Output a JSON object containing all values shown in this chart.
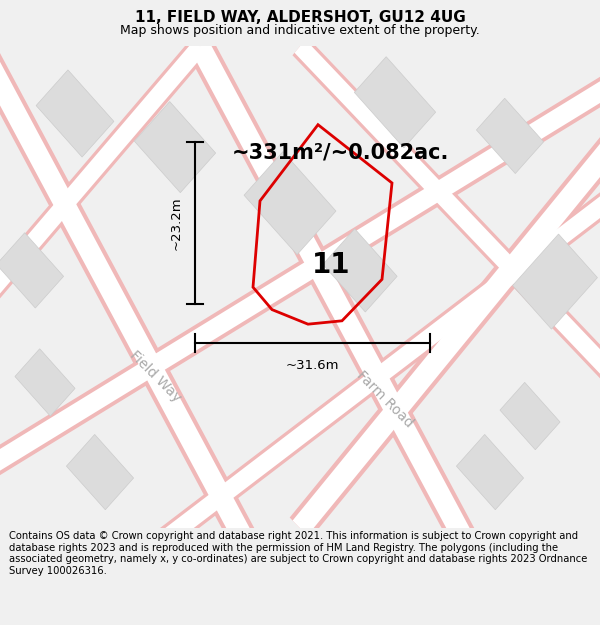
{
  "title": "11, FIELD WAY, ALDERSHOT, GU12 4UG",
  "subtitle": "Map shows position and indicative extent of the property.",
  "area_text": "~331m²/~0.082ac.",
  "number_label": "11",
  "dim_width": "~31.6m",
  "dim_height": "~23.2m",
  "footer": "Contains OS data © Crown copyright and database right 2021. This information is subject to Crown copyright and database rights 2023 and is reproduced with the permission of HM Land Registry. The polygons (including the associated geometry, namely x, y co-ordinates) are subject to Crown copyright and database rights 2023 Ordnance Survey 100026316.",
  "bg_color": "#f0f0f0",
  "map_bg": "#ffffff",
  "road_edge_color": "#f0b8b8",
  "road_center_color": "#ffffff",
  "block_color": "#dcdcdc",
  "block_edge_color": "#cccccc",
  "plot_color": "#dd0000",
  "street_label_color": "#aaaaaa",
  "title_fontsize": 11,
  "subtitle_fontsize": 9,
  "area_fontsize": 15,
  "number_fontsize": 20,
  "dim_fontsize": 9.5,
  "footer_fontsize": 7.2,
  "road_label_fontsize": 10,
  "road_label_color": "#aaaaaa"
}
